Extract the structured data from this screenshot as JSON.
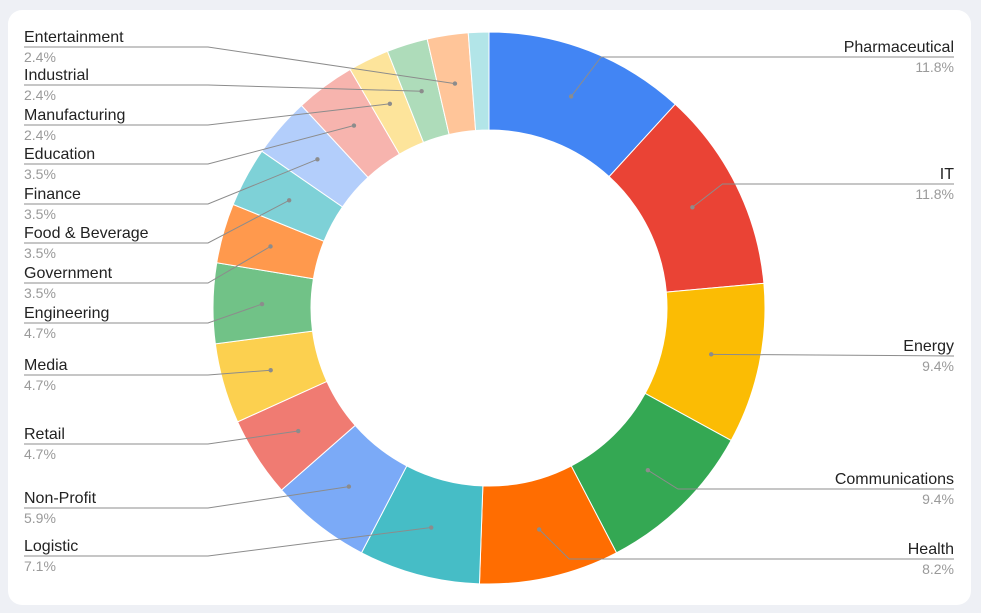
{
  "chart_data": {
    "type": "pie",
    "donut": true,
    "title": "",
    "legend": "none",
    "slices": [
      {
        "label": "Pharmaceutical",
        "value": 11.8,
        "display": "11.8%",
        "color": "#4285f4"
      },
      {
        "label": "IT",
        "value": 11.8,
        "display": "11.8%",
        "color": "#ea4335"
      },
      {
        "label": "Energy",
        "value": 9.4,
        "display": "9.4%",
        "color": "#fbbc04"
      },
      {
        "label": "Communications",
        "value": 9.4,
        "display": "9.4%",
        "color": "#34a853"
      },
      {
        "label": "Health",
        "value": 8.2,
        "display": "8.2%",
        "color": "#ff6d01"
      },
      {
        "label": "Logistic",
        "value": 7.1,
        "display": "7.1%",
        "color": "#46bdc6"
      },
      {
        "label": "Non-Profit",
        "value": 5.9,
        "display": "5.9%",
        "color": "#7baaf7"
      },
      {
        "label": "Retail",
        "value": 4.7,
        "display": "4.7%",
        "color": "#f07b72"
      },
      {
        "label": "Media",
        "value": 4.7,
        "display": "4.7%",
        "color": "#fcd04f"
      },
      {
        "label": "Engineering",
        "value": 4.7,
        "display": "4.7%",
        "color": "#71c287"
      },
      {
        "label": "Government",
        "value": 3.5,
        "display": "3.5%",
        "color": "#ff994d"
      },
      {
        "label": "Food & Beverage",
        "value": 3.5,
        "display": "3.5%",
        "color": "#7ed1d7"
      },
      {
        "label": "Finance",
        "value": 3.5,
        "display": "3.5%",
        "color": "#b3cefb"
      },
      {
        "label": "Education",
        "value": 3.5,
        "display": "3.5%",
        "color": "#f7b4ae"
      },
      {
        "label": "Manufacturing",
        "value": 2.4,
        "display": "2.4%",
        "color": "#fde49b"
      },
      {
        "label": "Industrial",
        "value": 2.4,
        "display": "2.4%",
        "color": "#aedcba"
      },
      {
        "label": "Entertainment",
        "value": 2.4,
        "display": "2.4%",
        "color": "#ffc599"
      },
      {
        "label": "",
        "value": 1.2,
        "display": "",
        "color": "#b2e5e8"
      }
    ]
  }
}
